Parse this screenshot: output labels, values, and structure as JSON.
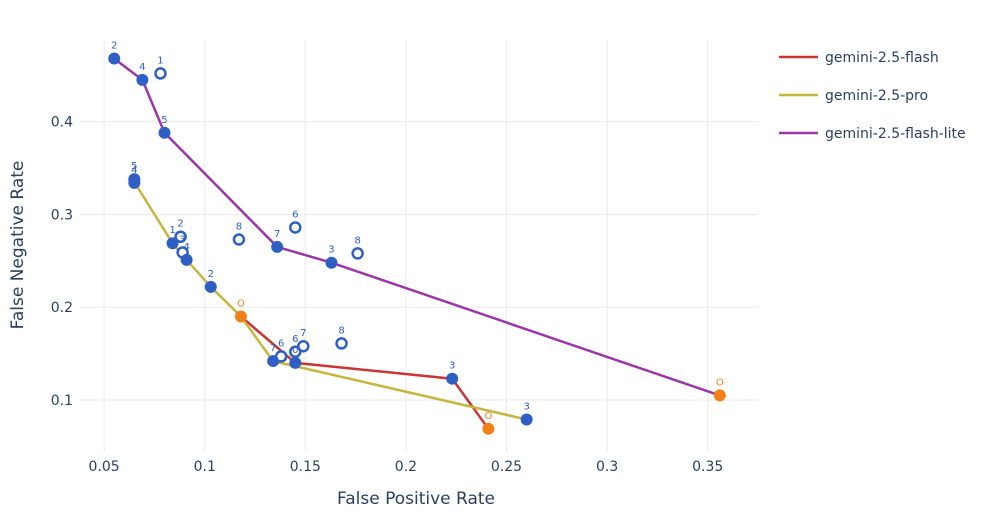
{
  "chart_data": {
    "type": "scatter",
    "xlabel": "False Positive Rate",
    "ylabel": "False Negative Rate",
    "xlim": [
      0.038,
      0.375
    ],
    "ylim": [
      0.044,
      0.488
    ],
    "xticks": [
      0.05,
      0.1,
      0.15,
      0.2,
      0.25,
      0.3,
      0.35
    ],
    "xtick_labels": [
      "0.05",
      "0.1",
      "0.15",
      "0.2",
      "0.25",
      "0.3",
      "0.35"
    ],
    "yticks": [
      0.1,
      0.2,
      0.3,
      0.4
    ],
    "ytick_labels": [
      "0.1",
      "0.2",
      "0.3",
      "0.4"
    ],
    "grid": true,
    "legend_position": "top-right",
    "colors": {
      "point": "#2f5fc4",
      "optimal": "#f57f17",
      "grid": "#ebebeb"
    },
    "series": [
      {
        "name": "gemini-2.5-flash",
        "color": "#cc3333",
        "line": [
          [
            0.118,
            0.19
          ],
          [
            0.145,
            0.14
          ],
          [
            0.223,
            0.123
          ],
          [
            0.241,
            0.069
          ]
        ]
      },
      {
        "name": "gemini-2.5-pro",
        "color": "#c8b53e",
        "line": [
          [
            0.065,
            0.335
          ],
          [
            0.084,
            0.269
          ],
          [
            0.091,
            0.251
          ],
          [
            0.103,
            0.222
          ],
          [
            0.118,
            0.19
          ],
          [
            0.134,
            0.142
          ],
          [
            0.26,
            0.079
          ]
        ]
      },
      {
        "name": "gemini-2.5-flash-lite",
        "color": "#9c36a8",
        "line": [
          [
            0.055,
            0.468
          ],
          [
            0.069,
            0.445
          ],
          [
            0.08,
            0.388
          ],
          [
            0.136,
            0.265
          ],
          [
            0.163,
            0.248
          ],
          [
            0.356,
            0.105
          ]
        ]
      }
    ],
    "points": [
      {
        "x": 0.055,
        "y": 0.468,
        "label": "2",
        "kind": "filled"
      },
      {
        "x": 0.069,
        "y": 0.445,
        "label": "4",
        "kind": "filled"
      },
      {
        "x": 0.078,
        "y": 0.452,
        "label": "1",
        "kind": "hollow"
      },
      {
        "x": 0.08,
        "y": 0.388,
        "label": "5",
        "kind": "filled"
      },
      {
        "x": 0.065,
        "y": 0.338,
        "label": "5",
        "kind": "filled"
      },
      {
        "x": 0.065,
        "y": 0.334,
        "label": "4",
        "kind": "filled"
      },
      {
        "x": 0.084,
        "y": 0.269,
        "label": "1",
        "kind": "filled"
      },
      {
        "x": 0.088,
        "y": 0.276,
        "label": "2",
        "kind": "hollow"
      },
      {
        "x": 0.089,
        "y": 0.259,
        "label": "3",
        "kind": "hollow"
      },
      {
        "x": 0.091,
        "y": 0.251,
        "label": "4",
        "kind": "filled"
      },
      {
        "x": 0.103,
        "y": 0.222,
        "label": "2",
        "kind": "filled"
      },
      {
        "x": 0.117,
        "y": 0.273,
        "label": "8",
        "kind": "hollow"
      },
      {
        "x": 0.145,
        "y": 0.286,
        "label": "6",
        "kind": "hollow"
      },
      {
        "x": 0.136,
        "y": 0.265,
        "label": "7",
        "kind": "filled"
      },
      {
        "x": 0.163,
        "y": 0.248,
        "label": "3",
        "kind": "filled"
      },
      {
        "x": 0.176,
        "y": 0.258,
        "label": "8",
        "kind": "hollow"
      },
      {
        "x": 0.118,
        "y": 0.19,
        "label": "O",
        "kind": "optimal"
      },
      {
        "x": 0.134,
        "y": 0.142,
        "label": "7",
        "kind": "filled"
      },
      {
        "x": 0.138,
        "y": 0.147,
        "label": "6",
        "kind": "hollow"
      },
      {
        "x": 0.145,
        "y": 0.152,
        "label": "6",
        "kind": "hollow"
      },
      {
        "x": 0.149,
        "y": 0.158,
        "label": "7",
        "kind": "hollow"
      },
      {
        "x": 0.145,
        "y": 0.14,
        "label": "0",
        "kind": "filled"
      },
      {
        "x": 0.168,
        "y": 0.161,
        "label": "8",
        "kind": "hollow"
      },
      {
        "x": 0.223,
        "y": 0.123,
        "label": "3",
        "kind": "filled"
      },
      {
        "x": 0.241,
        "y": 0.069,
        "label": "O",
        "kind": "optimal"
      },
      {
        "x": 0.26,
        "y": 0.079,
        "label": "3",
        "kind": "filled"
      },
      {
        "x": 0.356,
        "y": 0.105,
        "label": "O",
        "kind": "optimal"
      }
    ]
  }
}
